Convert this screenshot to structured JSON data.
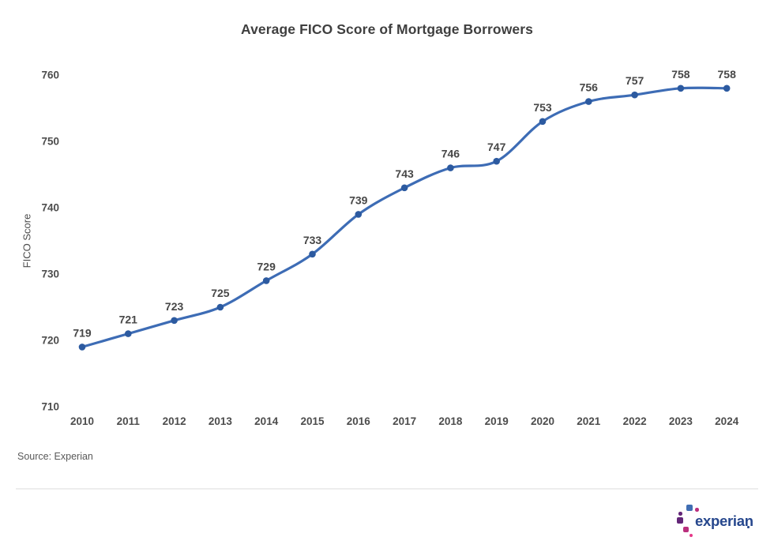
{
  "title": "Average FICO Score of Mortgage Borrowers",
  "source_note": "Source: Experian",
  "logo": {
    "wordmark": "experian"
  },
  "colors": {
    "line": "#3D6CB5",
    "marker": "#2C5AA0",
    "title_text": "#3F3F3F",
    "tick_text": "#4D4D4D",
    "point_label_text": "#474747",
    "source_text": "#595959",
    "divider": "#EDEDED",
    "logo_navy": "#26478D",
    "logo_blue": "#406EB3",
    "logo_purple": "#632678",
    "logo_magenta": "#BA2F7D",
    "logo_pink": "#E63888"
  },
  "chart_data": {
    "type": "line",
    "title": "Average FICO Score of Mortgage Borrowers",
    "categories": [
      "2010",
      "2011",
      "2012",
      "2013",
      "2014",
      "2015",
      "2016",
      "2017",
      "2018",
      "2019",
      "2020",
      "2021",
      "2022",
      "2023",
      "2024"
    ],
    "values": [
      719,
      721,
      723,
      725,
      729,
      733,
      739,
      743,
      746,
      747,
      753,
      756,
      757,
      758,
      758
    ],
    "xlabel": "",
    "ylabel": "FICO Score",
    "ylim": [
      710,
      760
    ],
    "yticks": [
      710,
      720,
      730,
      740,
      750,
      760
    ],
    "grid": false,
    "legend_position": "none",
    "point_labels_visible": true,
    "line_smoothing": true
  }
}
